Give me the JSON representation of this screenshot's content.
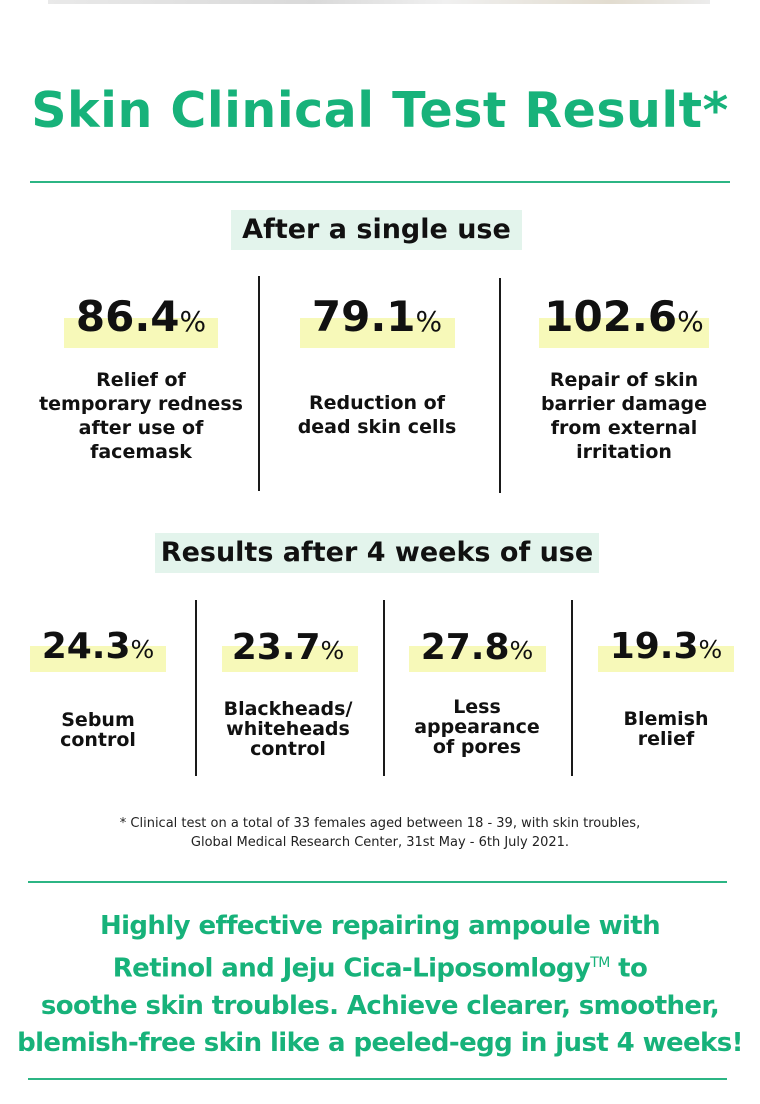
{
  "title": "Skin Clinical Test Result*",
  "single_use": {
    "label": "After a single use",
    "stats": [
      {
        "value": "86.4",
        "unit": "%",
        "lines": [
          "Relief of",
          "temporary redness",
          "after use of",
          "facemask"
        ]
      },
      {
        "value": "79.1",
        "unit": "%",
        "lines": [
          "Reduction of",
          "dead skin cells"
        ]
      },
      {
        "value": "102.6",
        "unit": "%",
        "lines": [
          "Repair of skin",
          "barrier damage",
          "from external",
          "irritation"
        ]
      }
    ]
  },
  "four_weeks": {
    "label": "Results after 4 weeks of use",
    "stats": [
      {
        "value": "24.3",
        "unit": "%",
        "lines": [
          "Sebum",
          "control"
        ]
      },
      {
        "value": "23.7",
        "unit": "%",
        "lines": [
          "Blackheads/",
          "whiteheads",
          "control"
        ]
      },
      {
        "value": "27.8",
        "unit": "%",
        "lines": [
          "Less",
          "appearance",
          "of pores"
        ]
      },
      {
        "value": "19.3",
        "unit": "%",
        "lines": [
          "Blemish",
          "relief"
        ]
      }
    ]
  },
  "footnote": {
    "line1": "* Clinical test on a total of 33 females aged between 18 - 39, with skin troubles,",
    "line2": "Global Medical Research Center, 31st May - 6th July 2021."
  },
  "tagline": {
    "line1": "Highly effective repairing ampoule with",
    "line2a": "Retinol and Jeju Cica-Liposomlogy",
    "tm": "TM",
    "line2b": " to",
    "line3": "soothe skin troubles. Achieve clearer, smoother,",
    "line4": "blemish-free skin like a peeled-egg in just 4 weeks!"
  },
  "colors": {
    "accent": "#17b27a",
    "label_bg": "#e3f4ec",
    "highlight": "#f7f9b9"
  }
}
